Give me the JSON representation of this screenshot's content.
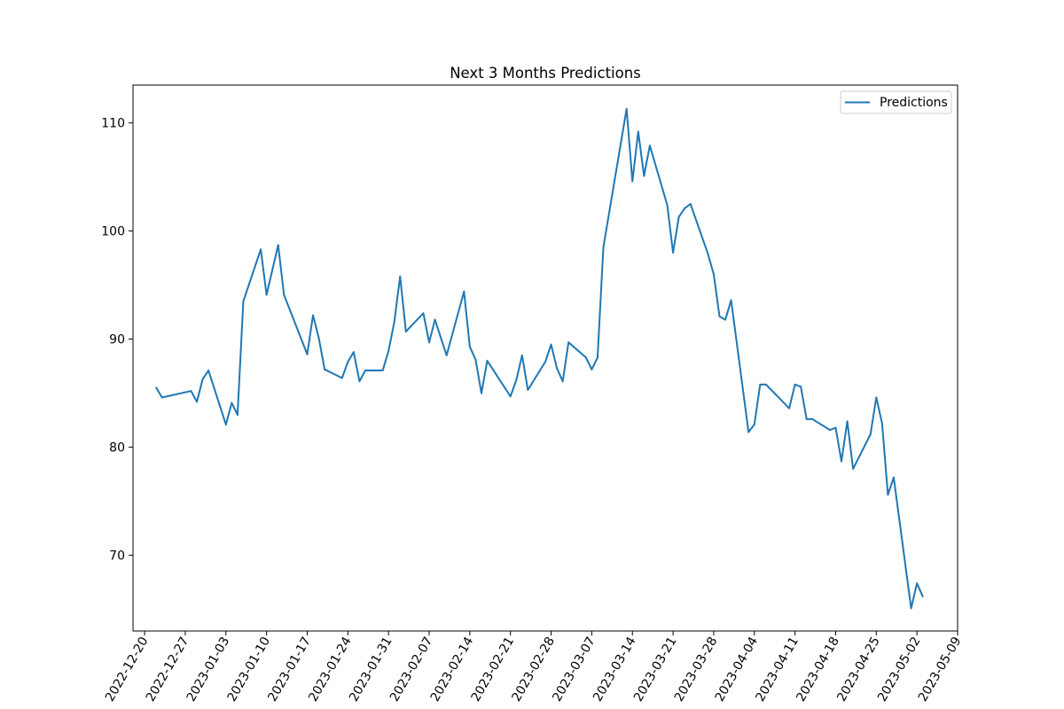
{
  "chart_data": {
    "type": "line",
    "title": "Next 3 Months Predictions",
    "xlabel": "",
    "ylabel": "",
    "x_axis_type": "date",
    "xlim": [
      "2022-12-18",
      "2023-05-09"
    ],
    "ylim": [
      63,
      113.5
    ],
    "x_ticks": [
      "2022-12-20",
      "2022-12-27",
      "2023-01-03",
      "2023-01-10",
      "2023-01-17",
      "2023-01-24",
      "2023-01-31",
      "2023-02-07",
      "2023-02-14",
      "2023-02-21",
      "2023-02-28",
      "2023-03-07",
      "2023-03-14",
      "2023-03-21",
      "2023-03-28",
      "2023-04-04",
      "2023-04-11",
      "2023-04-18",
      "2023-04-25",
      "2023-05-02",
      "2023-05-09"
    ],
    "y_ticks": [
      70,
      80,
      90,
      100,
      110
    ],
    "grid": false,
    "legend": {
      "position": "top-right",
      "entries": [
        "Predictions"
      ]
    },
    "series": [
      {
        "name": "Predictions",
        "color": "#1f77b4",
        "x": [
          "2022-12-22",
          "2022-12-23",
          "2022-12-28",
          "2022-12-29",
          "2022-12-30",
          "2022-12-31",
          "2023-01-03",
          "2023-01-04",
          "2023-01-05",
          "2023-01-06",
          "2023-01-09",
          "2023-01-10",
          "2023-01-12",
          "2023-01-13",
          "2023-01-17",
          "2023-01-18",
          "2023-01-19",
          "2023-01-20",
          "2023-01-23",
          "2023-01-24",
          "2023-01-25",
          "2023-01-26",
          "2023-01-27",
          "2023-01-30",
          "2023-01-31",
          "2023-02-01",
          "2023-02-02",
          "2023-02-03",
          "2023-02-06",
          "2023-02-07",
          "2023-02-08",
          "2023-02-10",
          "2023-02-13",
          "2023-02-14",
          "2023-02-15",
          "2023-02-16",
          "2023-02-17",
          "2023-02-21",
          "2023-02-22",
          "2023-02-23",
          "2023-02-24",
          "2023-02-27",
          "2023-02-28",
          "2023-03-01",
          "2023-03-02",
          "2023-03-03",
          "2023-03-06",
          "2023-03-07",
          "2023-03-08",
          "2023-03-09",
          "2023-03-13",
          "2023-03-14",
          "2023-03-15",
          "2023-03-16",
          "2023-03-17",
          "2023-03-20",
          "2023-03-21",
          "2023-03-22",
          "2023-03-23",
          "2023-03-24",
          "2023-03-27",
          "2023-03-28",
          "2023-03-29",
          "2023-03-30",
          "2023-03-31",
          "2023-04-03",
          "2023-04-04",
          "2023-04-05",
          "2023-04-06",
          "2023-04-10",
          "2023-04-11",
          "2023-04-12",
          "2023-04-13",
          "2023-04-14",
          "2023-04-17",
          "2023-04-18",
          "2023-04-19",
          "2023-04-20",
          "2023-04-21",
          "2023-04-24",
          "2023-04-25",
          "2023-04-26",
          "2023-04-27",
          "2023-04-28",
          "2023-05-01",
          "2023-05-02",
          "2023-05-03"
        ],
        "values": [
          85.5,
          84.6,
          85.2,
          84.2,
          86.3,
          87.1,
          82.1,
          84.1,
          83.0,
          93.5,
          98.3,
          94.1,
          98.7,
          94.1,
          88.6,
          92.2,
          90.1,
          87.2,
          86.4,
          87.9,
          88.8,
          86.1,
          87.1,
          87.1,
          88.9,
          91.6,
          95.8,
          90.7,
          92.4,
          89.7,
          91.8,
          88.5,
          94.4,
          89.3,
          88.1,
          85.0,
          88.0,
          84.7,
          86.2,
          88.5,
          85.3,
          87.9,
          89.5,
          87.3,
          86.1,
          89.7,
          88.3,
          87.2,
          88.3,
          98.5,
          111.3,
          104.6,
          109.2,
          105.1,
          107.9,
          102.4,
          98.0,
          101.3,
          102.1,
          102.5,
          97.9,
          96.0,
          92.1,
          91.8,
          93.6,
          81.4,
          82.1,
          85.8,
          85.8,
          83.6,
          85.8,
          85.6,
          82.6,
          82.6,
          81.6,
          81.8,
          78.7,
          82.4,
          78.0,
          81.2,
          84.6,
          82.2,
          75.6,
          77.2,
          65.1,
          67.4,
          66.2
        ]
      }
    ]
  }
}
